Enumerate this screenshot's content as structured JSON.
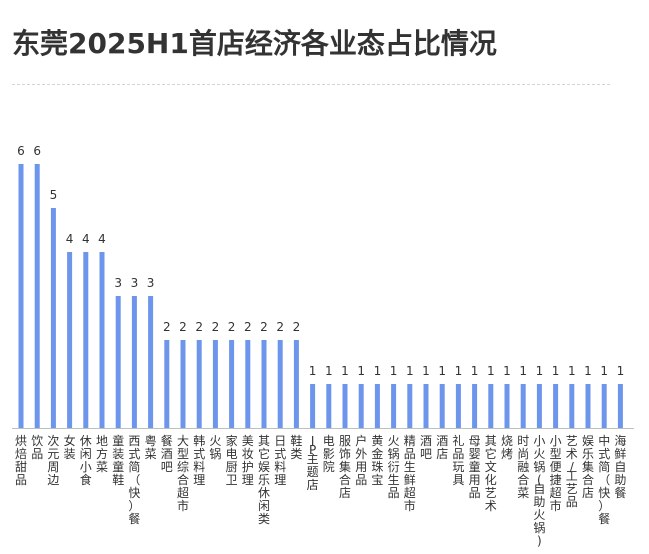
{
  "colors": {
    "bar": "#6d95ec",
    "axis": "#bfbfbf"
  },
  "chart_data": {
    "type": "bar",
    "title": "东莞2025H1首店经济各业态占比情况",
    "xlabel": "",
    "ylabel": "",
    "ylim": [
      0,
      6
    ],
    "grid": false,
    "legend": "none",
    "categories": [
      "烘焙甜品",
      "饮品",
      "次元周边",
      "女装",
      "休闲小食",
      "地方菜",
      "童装童鞋",
      "西式简（快）餐",
      "粤菜",
      "餐酒吧",
      "大型综合超市",
      "韩式料理",
      "火锅",
      "家电厨卫",
      "美妆护理",
      "其它娱乐休闲类",
      "日式料理",
      "鞋类",
      "IP主题店",
      "电影院",
      "服饰集合店",
      "户外用品",
      "黄金珠宝",
      "火锅衍生品",
      "精品生鲜超市",
      "酒吧",
      "酒店",
      "礼品玩具",
      "母婴童用品",
      "其它文化艺术",
      "烧烤",
      "时尚融合菜",
      "小火锅(自助火锅)",
      "小型便捷超市",
      "艺术/工艺品",
      "娱乐集合店",
      "中式简（快）餐",
      "海鲜自助餐"
    ],
    "values": [
      6,
      6,
      5,
      4,
      4,
      4,
      3,
      3,
      3,
      2,
      2,
      2,
      2,
      2,
      2,
      2,
      2,
      2,
      1,
      1,
      1,
      1,
      1,
      1,
      1,
      1,
      1,
      1,
      1,
      1,
      1,
      1,
      1,
      1,
      1,
      1,
      1,
      1
    ]
  }
}
